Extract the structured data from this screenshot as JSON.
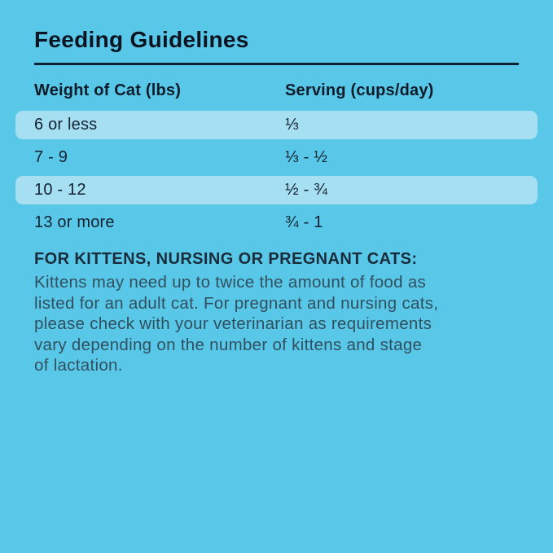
{
  "colors": {
    "background": "#58c7e8",
    "row_highlight": "#a6dff1",
    "title_text": "#0b1420",
    "rule": "#0f2233",
    "table_text": "#132230",
    "note_heading_text": "#1b2c3b",
    "note_body_text": "#31505f"
  },
  "title": "Feeding Guidelines",
  "table": {
    "headers": {
      "weight": "Weight of Cat (lbs)",
      "serving": "Serving (cups/day)"
    },
    "rows": [
      {
        "weight": "6 or less",
        "serving": "⅓",
        "highlighted": true
      },
      {
        "weight": "7 - 9",
        "serving": "⅓ - ½",
        "highlighted": false
      },
      {
        "weight": "10 - 12",
        "serving": "½ - ¾",
        "highlighted": true
      },
      {
        "weight": "13 or more",
        "serving": "¾ - 1",
        "highlighted": false
      }
    ]
  },
  "note": {
    "heading": "FOR KITTENS, NURSING OR PREGNANT CATS:",
    "lines": [
      "Kittens may need up to twice the amount of food as",
      "listed for an adult cat. For pregnant and nursing cats,",
      "please check with your veterinarian as requirements",
      "vary depending on the number of kittens and stage",
      "of lactation."
    ]
  }
}
